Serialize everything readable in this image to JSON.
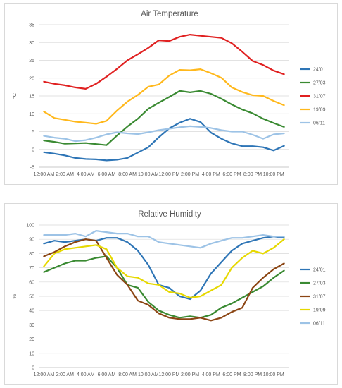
{
  "chart_data": [
    {
      "type": "line",
      "title": "Air Temperature",
      "ylabel": "°C",
      "xlabel": "",
      "ylim": [
        -5,
        35
      ],
      "yticks": [
        -5,
        0,
        5,
        10,
        15,
        20,
        25,
        30,
        35
      ],
      "x": [
        "12:00 AM",
        "1:00 AM",
        "2:00 AM",
        "3:00 AM",
        "4:00 AM",
        "5:00 AM",
        "6:00 AM",
        "7:00 AM",
        "8:00 AM",
        "9:00 AM",
        "10:00 AM",
        "11:00 AM",
        "12:00 PM",
        "1:00 PM",
        "2:00 PM",
        "3:00 PM",
        "4:00 PM",
        "5:00 PM",
        "6:00 PM",
        "7:00 PM",
        "8:00 PM",
        "9:00 PM",
        "10:00 PM",
        "11:00 PM"
      ],
      "xtick_labels": [
        "12:00 AM",
        "2:00 AM",
        "4:00 AM",
        "6:00 AM",
        "8:00 AM",
        "10:00 AM",
        "12:00 PM",
        "2:00 PM",
        "4:00 PM",
        "6:00 PM",
        "8:00 PM",
        "10:00 PM"
      ],
      "grid": true,
      "legend": "right",
      "series": [
        {
          "name": "24/01",
          "color": "#2e75b6",
          "values": [
            -0.8,
            -1.2,
            -1.7,
            -2.4,
            -2.7,
            -2.8,
            -3.1,
            -2.9,
            -2.4,
            -0.9,
            0.6,
            3.4,
            5.9,
            7.5,
            8.6,
            7.7,
            4.7,
            3.0,
            1.7,
            0.9,
            0.9,
            0.6,
            -0.3,
            1.0
          ]
        },
        {
          "name": "27/03",
          "color": "#3a8a32",
          "values": [
            2.5,
            2.1,
            1.6,
            1.7,
            1.8,
            1.5,
            1.2,
            3.9,
            6.4,
            8.6,
            11.4,
            13.1,
            14.7,
            16.4,
            16.0,
            16.4,
            15.6,
            14.2,
            12.6,
            11.2,
            10.1,
            8.6,
            7.4,
            6.3
          ]
        },
        {
          "name": "31/07",
          "color": "#e02020",
          "values": [
            19.0,
            18.4,
            18.0,
            17.4,
            17.0,
            18.4,
            20.4,
            22.6,
            25.0,
            26.7,
            28.5,
            30.6,
            30.4,
            31.6,
            32.2,
            31.9,
            31.6,
            31.3,
            29.8,
            27.4,
            24.8,
            23.7,
            22.1,
            21.1
          ]
        },
        {
          "name": "19/09",
          "color": "#ffb81c",
          "values": [
            10.6,
            8.8,
            8.3,
            7.8,
            7.5,
            7.2,
            8.0,
            10.9,
            13.4,
            15.3,
            17.6,
            18.2,
            20.7,
            22.3,
            22.2,
            22.5,
            21.4,
            20.1,
            17.4,
            16.1,
            15.2,
            15.0,
            13.6,
            12.4
          ]
        },
        {
          "name": "06/11",
          "color": "#9dc3e6",
          "values": [
            3.8,
            3.3,
            3.0,
            2.3,
            2.6,
            3.3,
            4.2,
            4.8,
            4.5,
            4.3,
            4.8,
            5.4,
            5.8,
            6.2,
            6.5,
            6.3,
            6.0,
            5.4,
            5.0,
            5.0,
            4.1,
            3.0,
            4.2,
            4.5
          ]
        }
      ]
    },
    {
      "type": "line",
      "title": "Relative Humidity",
      "ylabel": "%",
      "xlabel": "",
      "ylim": [
        0,
        100
      ],
      "yticks": [
        0,
        10,
        20,
        30,
        40,
        50,
        60,
        70,
        80,
        90,
        100
      ],
      "x": [
        "12:00 AM",
        "1:00 AM",
        "2:00 AM",
        "3:00 AM",
        "4:00 AM",
        "5:00 AM",
        "6:00 AM",
        "7:00 AM",
        "8:00 AM",
        "9:00 AM",
        "10:00 AM",
        "11:00 AM",
        "12:00 PM",
        "1:00 PM",
        "2:00 PM",
        "3:00 PM",
        "4:00 PM",
        "5:00 PM",
        "6:00 PM",
        "7:00 PM",
        "8:00 PM",
        "9:00 PM",
        "10:00 PM",
        "11:00 PM"
      ],
      "xtick_labels": [
        "12:00 AM",
        "2:00 AM",
        "4:00 AM",
        "6:00 AM",
        "8:00 AM",
        "10:00 AM",
        "12:00 PM",
        "2:00 PM",
        "4:00 PM",
        "6:00 PM",
        "8:00 PM",
        "10:00 PM"
      ],
      "grid": true,
      "legend": "right",
      "series": [
        {
          "name": "24/01",
          "color": "#2e75b6",
          "values": [
            87,
            89,
            88,
            89,
            90,
            89,
            91,
            91,
            88,
            82,
            72,
            58,
            56,
            50,
            48,
            54,
            66,
            74,
            82,
            87,
            89,
            91,
            92,
            91
          ]
        },
        {
          "name": "27/03",
          "color": "#3a8a32",
          "values": [
            67,
            70,
            73,
            75,
            75,
            77,
            78,
            70,
            58,
            56,
            46,
            40,
            37,
            35,
            36,
            35,
            37,
            42,
            45,
            49,
            53,
            57,
            63,
            68
          ]
        },
        {
          "name": "31/07",
          "color": "#8b4513",
          "values": [
            78,
            81,
            85,
            88,
            90,
            89,
            77,
            65,
            58,
            47,
            44,
            38,
            35,
            34,
            34,
            35,
            33,
            35,
            39,
            42,
            56,
            63,
            69,
            73
          ]
        },
        {
          "name": "19/09",
          "color": "#e6d800",
          "values": [
            71,
            80,
            83,
            84,
            85,
            86,
            83,
            70,
            64,
            63,
            59,
            58,
            53,
            52,
            49,
            50,
            54,
            58,
            70,
            77,
            82,
            80,
            84,
            90
          ]
        },
        {
          "name": "06/11",
          "color": "#9dc3e6",
          "values": [
            93,
            93,
            93,
            94,
            92,
            96,
            95,
            94,
            94,
            92,
            92,
            88,
            87,
            86,
            85,
            84,
            87,
            89,
            91,
            91,
            92,
            93,
            92,
            92
          ]
        }
      ]
    }
  ]
}
